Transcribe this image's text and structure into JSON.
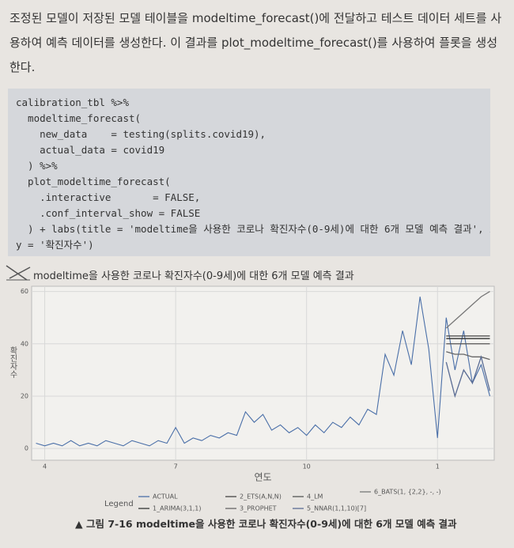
{
  "paragraph": "조정된 모델이 저장된 모델 테이블을 modeltime_forecast()에 전달하고 테스트 데이터 세트를 사용하여 예측 데이터를 생성한다. 이 결과를 plot_modeltime_forecast()를 사용하여 플롯을 생성한다.",
  "code": [
    "calibration_tbl %>%",
    "  modeltime_forecast(",
    "    new_data    = testing(splits.covid19),",
    "    actual_data = covid19",
    "  ) %>%",
    "  plot_modeltime_forecast(",
    "    .interactive       = FALSE,",
    "    .conf_interval_show = FALSE",
    "  ) + labs(title = 'modeltime을 사용한 코로나 확진자수(0-9세)에 대한 6개 모델 예측 결과', x = '연도',",
    "y = '확진자수')"
  ],
  "chart_data": {
    "type": "line",
    "title": "modeltime을 사용한 코로나 확진자수(0-9세)에 대한 6개 모델 예측 결과",
    "x_label": "연도",
    "y_label": "확진자수",
    "legend_title": "Legend",
    "xlim": [
      3.7,
      14.3
    ],
    "xticks": [
      4,
      7,
      10,
      {
        "value": 13,
        "label": "1"
      }
    ],
    "ylim": [
      -4.5,
      62
    ],
    "yticks": [
      0,
      20,
      40,
      60
    ],
    "grid": true,
    "series": [
      {
        "name": "ACTUAL",
        "color": "#4a6fa8",
        "x": [
          3.8,
          4.0,
          4.2,
          4.4,
          4.6,
          4.8,
          5.0,
          5.2,
          5.4,
          5.6,
          5.8,
          6.0,
          6.2,
          6.4,
          6.6,
          6.8,
          7.0,
          7.2,
          7.4,
          7.6,
          7.8,
          8.0,
          8.2,
          8.4,
          8.6,
          8.8,
          9.0,
          9.2,
          9.4,
          9.6,
          9.8,
          10.0,
          10.2,
          10.4,
          10.6,
          10.8,
          11.0,
          11.2,
          11.4,
          11.6,
          11.8,
          12.0,
          12.2,
          12.4,
          12.6,
          12.8,
          13.0,
          13.2,
          13.4,
          13.6,
          13.8,
          14.0,
          14.2
        ],
        "values": [
          2,
          1,
          2,
          1,
          3,
          1,
          2,
          1,
          3,
          2,
          1,
          3,
          2,
          1,
          3,
          2,
          8,
          2,
          4,
          3,
          5,
          4,
          6,
          5,
          14,
          10,
          13,
          7,
          9,
          6,
          8,
          5,
          9,
          6,
          10,
          8,
          12,
          9,
          15,
          13,
          36,
          28,
          45,
          32,
          58,
          38,
          4,
          50,
          30,
          45,
          25,
          32,
          20
        ]
      },
      {
        "name": "1_ARIMA(3,1,1)",
        "color": "#333333",
        "x": [
          13.2,
          13.4,
          13.6,
          13.8,
          14.0,
          14.2
        ],
        "values": [
          42,
          42,
          42,
          42,
          42,
          42
        ]
      },
      {
        "name": "2_ETS(A,N,N)",
        "color": "#444444",
        "x": [
          13.2,
          13.4,
          13.6,
          13.8,
          14.0,
          14.2
        ],
        "values": [
          43,
          43,
          43,
          43,
          43,
          43
        ]
      },
      {
        "name": "3_PROPHET",
        "color": "#666666",
        "x": [
          13.2,
          13.4,
          13.6,
          13.8,
          14.0,
          14.2
        ],
        "values": [
          37,
          36,
          36,
          35,
          35,
          34
        ]
      },
      {
        "name": "4_LM",
        "color": "#555555",
        "x": [
          13.2,
          13.4,
          13.6,
          13.8,
          14.0,
          14.2
        ],
        "values": [
          40,
          40,
          40,
          40,
          40,
          40
        ]
      },
      {
        "name": "5_NNAR(1,1,10)[7]",
        "color": "#5a6c94",
        "x": [
          13.2,
          13.4,
          13.6,
          13.8,
          14.0,
          14.2
        ],
        "values": [
          33,
          20,
          30,
          25,
          35,
          22
        ]
      },
      {
        "name": "6_BATS(1, {2,2}, -, -)",
        "color": "#777777",
        "x": [
          13.2,
          13.4,
          13.6,
          13.8,
          14.0,
          14.2
        ],
        "values": [
          46,
          49,
          52,
          55,
          58,
          60
        ]
      }
    ]
  },
  "caption": "▲ 그림 7-16  modeltime을 사용한 코로나 확진자수(0-9세)에 대한 6개 모델 예측 결과"
}
